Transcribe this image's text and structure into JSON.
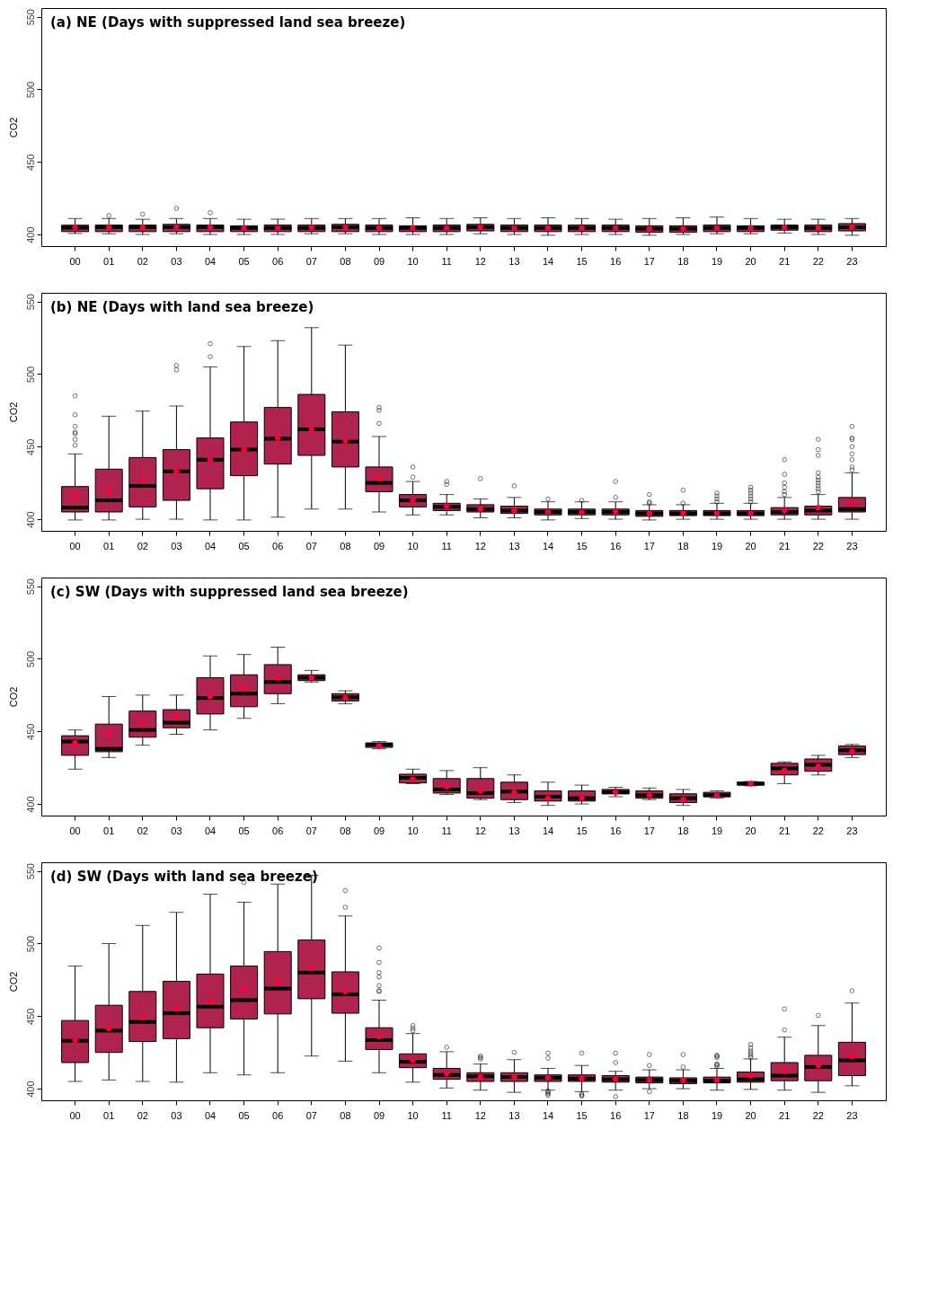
{
  "chart_data": [
    {
      "type": "box",
      "title": "(a) NE (Days with suppressed land sea breeze)",
      "ylabel": "CO2",
      "ylim": [
        392,
        556
      ],
      "yticks": [
        400,
        450,
        500,
        550
      ],
      "grid": false,
      "legend": false,
      "color": "#b0234f",
      "categories": [
        "00",
        "01",
        "02",
        "03",
        "04",
        "05",
        "06",
        "07",
        "08",
        "09",
        "10",
        "11",
        "12",
        "13",
        "14",
        "15",
        "16",
        "17",
        "18",
        "19",
        "20",
        "21",
        "22",
        "23"
      ],
      "boxes": [
        {
          "low": 400.7,
          "q1": 402,
          "median": 404.7,
          "q3": 406.4,
          "high": 411,
          "mean": 405
        },
        {
          "low": 400.5,
          "q1": 402,
          "median": 405,
          "q3": 406.5,
          "high": 411,
          "mean": 405,
          "outliers": [
            413
          ]
        },
        {
          "low": 400,
          "q1": 402,
          "median": 405,
          "q3": 406.5,
          "high": 410.5,
          "mean": 405,
          "outliers": [
            414
          ]
        },
        {
          "low": 400.5,
          "q1": 402,
          "median": 405,
          "q3": 407,
          "high": 411,
          "mean": 405,
          "outliers": [
            418
          ]
        },
        {
          "low": 400,
          "q1": 402,
          "median": 405,
          "q3": 406.5,
          "high": 411,
          "mean": 405,
          "outliers": [
            415
          ]
        },
        {
          "low": 400,
          "q1": 402,
          "median": 404.5,
          "q3": 406,
          "high": 410.5,
          "mean": 404.5
        },
        {
          "low": 400,
          "q1": 402,
          "median": 404.5,
          "q3": 406.5,
          "high": 410.5,
          "mean": 404.5
        },
        {
          "low": 400.5,
          "q1": 402,
          "median": 404.5,
          "q3": 406.5,
          "high": 411,
          "mean": 405
        },
        {
          "low": 400.5,
          "q1": 402,
          "median": 405,
          "q3": 407,
          "high": 411,
          "mean": 405
        },
        {
          "low": 400,
          "q1": 402,
          "median": 404.5,
          "q3": 406.5,
          "high": 411,
          "mean": 404.5
        },
        {
          "low": 400,
          "q1": 402,
          "median": 404.5,
          "q3": 406,
          "high": 411.5,
          "mean": 404.5
        },
        {
          "low": 400,
          "q1": 402,
          "median": 404.5,
          "q3": 406.5,
          "high": 411,
          "mean": 404.5
        },
        {
          "low": 400.5,
          "q1": 402.5,
          "median": 405,
          "q3": 407,
          "high": 411.5,
          "mean": 405
        },
        {
          "low": 400,
          "q1": 402,
          "median": 404.5,
          "q3": 406.5,
          "high": 411,
          "mean": 404.5
        },
        {
          "low": 399.5,
          "q1": 402,
          "median": 404.5,
          "q3": 406.5,
          "high": 411.5,
          "mean": 404.5
        },
        {
          "low": 400,
          "q1": 402,
          "median": 404.5,
          "q3": 406.5,
          "high": 411,
          "mean": 404.5
        },
        {
          "low": 400,
          "q1": 402,
          "median": 404.5,
          "q3": 406.5,
          "high": 410.5,
          "mean": 404.5
        },
        {
          "low": 399.5,
          "q1": 401.5,
          "median": 404,
          "q3": 406,
          "high": 411,
          "mean": 404
        },
        {
          "low": 400,
          "q1": 401.5,
          "median": 404,
          "q3": 406,
          "high": 411.5,
          "mean": 404
        },
        {
          "low": 400.5,
          "q1": 402,
          "median": 404.5,
          "q3": 406.5,
          "high": 412,
          "mean": 404.5
        },
        {
          "low": 400.5,
          "q1": 402,
          "median": 404.5,
          "q3": 406,
          "high": 411,
          "mean": 404.5
        },
        {
          "low": 401,
          "q1": 403,
          "median": 405,
          "q3": 406.5,
          "high": 410.5,
          "mean": 405
        },
        {
          "low": 400,
          "q1": 402,
          "median": 404.5,
          "q3": 406.5,
          "high": 410.5,
          "mean": 404.5
        },
        {
          "low": 399.5,
          "q1": 402.5,
          "median": 405,
          "q3": 407.5,
          "high": 411,
          "mean": 405
        }
      ]
    },
    {
      "type": "box",
      "title": "(b) NE (Days with land sea breeze)",
      "ylabel": "CO2",
      "ylim": [
        392,
        556
      ],
      "yticks": [
        400,
        450,
        500,
        550
      ],
      "grid": false,
      "legend": false,
      "color": "#b0234f",
      "categories": [
        "00",
        "01",
        "02",
        "03",
        "04",
        "05",
        "06",
        "07",
        "08",
        "09",
        "10",
        "11",
        "12",
        "13",
        "14",
        "15",
        "16",
        "17",
        "18",
        "19",
        "20",
        "21",
        "22",
        "23"
      ],
      "boxes": [
        {
          "low": 399.5,
          "q1": 405,
          "median": 408,
          "q3": 422.5,
          "high": 445,
          "mean": 416,
          "outliers": [
            451,
            455,
            459,
            460,
            464,
            472,
            485
          ]
        },
        {
          "low": 399.5,
          "q1": 405,
          "median": 413,
          "q3": 434.5,
          "high": 471,
          "mean": 420
        },
        {
          "low": 400,
          "q1": 408.5,
          "median": 423,
          "q3": 442.5,
          "high": 474.5,
          "mean": 427
        },
        {
          "low": 400,
          "q1": 413,
          "median": 433,
          "q3": 448,
          "high": 478,
          "mean": 433,
          "outliers": [
            503,
            506
          ]
        },
        {
          "low": 399.5,
          "q1": 421,
          "median": 441,
          "q3": 456,
          "high": 505,
          "mean": 441,
          "outliers": [
            512,
            521
          ]
        },
        {
          "low": 399.5,
          "q1": 430,
          "median": 448,
          "q3": 467,
          "high": 519,
          "mean": 448
        },
        {
          "low": 401.5,
          "q1": 438,
          "median": 455.5,
          "q3": 477,
          "high": 523,
          "mean": 456
        },
        {
          "low": 407,
          "q1": 444,
          "median": 462,
          "q3": 486,
          "high": 532,
          "mean": 462
        },
        {
          "low": 407,
          "q1": 436,
          "median": 453.5,
          "q3": 474,
          "high": 520,
          "mean": 454
        },
        {
          "low": 405,
          "q1": 419,
          "median": 425,
          "q3": 436,
          "high": 457,
          "mean": 428,
          "outliers": [
            466,
            475,
            477
          ]
        },
        {
          "low": 403,
          "q1": 408.5,
          "median": 413,
          "q3": 417,
          "high": 426,
          "mean": 413,
          "outliers": [
            429,
            436
          ]
        },
        {
          "low": 403,
          "q1": 406,
          "median": 408.5,
          "q3": 411,
          "high": 417,
          "mean": 409,
          "outliers": [
            424,
            426
          ]
        },
        {
          "low": 401,
          "q1": 405,
          "median": 407,
          "q3": 410,
          "high": 414,
          "mean": 407,
          "outliers": [
            428
          ]
        },
        {
          "low": 401,
          "q1": 404,
          "median": 406,
          "q3": 409,
          "high": 415,
          "mean": 406,
          "outliers": [
            423
          ]
        },
        {
          "low": 399.5,
          "q1": 403,
          "median": 405,
          "q3": 407,
          "high": 412,
          "mean": 405,
          "outliers": [
            414
          ]
        },
        {
          "low": 400.5,
          "q1": 403,
          "median": 405,
          "q3": 407,
          "high": 412,
          "mean": 404.5,
          "outliers": [
            413
          ]
        },
        {
          "low": 400,
          "q1": 403,
          "median": 405,
          "q3": 407,
          "high": 412,
          "mean": 405,
          "outliers": [
            415,
            426
          ]
        },
        {
          "low": 399.5,
          "q1": 402,
          "median": 404,
          "q3": 406,
          "high": 410,
          "mean": 404,
          "outliers": [
            411,
            412,
            417
          ]
        },
        {
          "low": 400,
          "q1": 402.5,
          "median": 404,
          "q3": 406,
          "high": 410,
          "mean": 404,
          "outliers": [
            411,
            420
          ]
        },
        {
          "low": 400,
          "q1": 402.5,
          "median": 404,
          "q3": 406,
          "high": 411,
          "mean": 404,
          "outliers": [
            412,
            414,
            416,
            418
          ]
        },
        {
          "low": 400,
          "q1": 402.5,
          "median": 404,
          "q3": 406,
          "high": 411,
          "mean": 404,
          "outliers": [
            412,
            414,
            416,
            418,
            420,
            422
          ]
        },
        {
          "low": 400,
          "q1": 403,
          "median": 405,
          "q3": 408,
          "high": 415,
          "mean": 406,
          "outliers": [
            417,
            419,
            422,
            425,
            431,
            441
          ]
        },
        {
          "low": 400,
          "q1": 403,
          "median": 406,
          "q3": 409,
          "high": 417,
          "mean": 408,
          "outliers": [
            419,
            421,
            423,
            425,
            427,
            429,
            432,
            444,
            448,
            455
          ]
        },
        {
          "low": 400,
          "q1": 405,
          "median": 407,
          "q3": 415,
          "high": 432,
          "mean": 411,
          "outliers": [
            434,
            436,
            441,
            445,
            450,
            455,
            456,
            464
          ]
        }
      ]
    },
    {
      "type": "box",
      "title": "(c) SW (Days with suppressed land sea breeze)",
      "ylabel": "CO2",
      "ylim": [
        392,
        556
      ],
      "yticks": [
        400,
        450,
        500,
        550
      ],
      "grid": false,
      "legend": false,
      "color": "#b0234f",
      "categories": [
        "00",
        "01",
        "02",
        "03",
        "04",
        "05",
        "06",
        "07",
        "08",
        "09",
        "10",
        "11",
        "12",
        "13",
        "14",
        "15",
        "16",
        "17",
        "18",
        "19",
        "20",
        "21",
        "22",
        "23"
      ],
      "boxes": [
        {
          "low": 424,
          "q1": 433.5,
          "median": 443,
          "q3": 447,
          "high": 451,
          "mean": 442
        },
        {
          "low": 432,
          "q1": 436,
          "median": 438,
          "q3": 455,
          "high": 474,
          "mean": 448
        },
        {
          "low": 440.5,
          "q1": 446,
          "median": 451,
          "q3": 464,
          "high": 475,
          "mean": 455.5
        },
        {
          "low": 448,
          "q1": 452.5,
          "median": 456,
          "q3": 465,
          "high": 475,
          "mean": 460
        },
        {
          "low": 451,
          "q1": 462,
          "median": 473,
          "q3": 487,
          "high": 502,
          "mean": 474
        },
        {
          "low": 459,
          "q1": 467,
          "median": 476,
          "q3": 489,
          "high": 503,
          "mean": 480
        },
        {
          "low": 469,
          "q1": 476,
          "median": 484,
          "q3": 496,
          "high": 508,
          "mean": 487
        },
        {
          "low": 484,
          "q1": 485,
          "median": 487,
          "q3": 489,
          "high": 492,
          "mean": 487
        },
        {
          "low": 469,
          "q1": 471,
          "median": 473.5,
          "q3": 476,
          "high": 478,
          "mean": 473
        },
        {
          "low": 438,
          "q1": 439,
          "median": 441,
          "q3": 442,
          "high": 443,
          "mean": 440
        },
        {
          "low": 414,
          "q1": 414.5,
          "median": 418,
          "q3": 420.5,
          "high": 424,
          "mean": 417
        },
        {
          "low": 406.5,
          "q1": 407.5,
          "median": 410,
          "q3": 417.5,
          "high": 423,
          "mean": 412
        },
        {
          "low": 403,
          "q1": 404,
          "median": 407.5,
          "q3": 417.5,
          "high": 425,
          "mean": 409
        },
        {
          "low": 401,
          "q1": 403,
          "median": 408.5,
          "q3": 415,
          "high": 420,
          "mean": 408
        },
        {
          "low": 399,
          "q1": 402,
          "median": 405,
          "q3": 409,
          "high": 415,
          "mean": 404
        },
        {
          "low": 400,
          "q1": 402,
          "median": 404,
          "q3": 409,
          "high": 413,
          "mean": 404
        },
        {
          "low": 405,
          "q1": 407,
          "median": 408,
          "q3": 410,
          "high": 411.5,
          "mean": 408
        },
        {
          "low": 403,
          "q1": 404,
          "median": 406,
          "q3": 409,
          "high": 411,
          "mean": 406
        },
        {
          "low": 399,
          "q1": 401,
          "median": 404,
          "q3": 407,
          "high": 410,
          "mean": 403
        },
        {
          "low": 404,
          "q1": 405,
          "median": 406,
          "q3": 408,
          "high": 409,
          "mean": 406
        },
        {
          "low": 412.5,
          "q1": 413,
          "median": 414,
          "q3": 415,
          "high": 415.5,
          "mean": 414
        },
        {
          "low": 414,
          "q1": 420,
          "median": 424.5,
          "q3": 428,
          "high": 429,
          "mean": 423
        },
        {
          "low": 420,
          "q1": 422.5,
          "median": 427,
          "q3": 431,
          "high": 433.5,
          "mean": 426
        },
        {
          "low": 432,
          "q1": 434,
          "median": 437,
          "q3": 440,
          "high": 441,
          "mean": 436
        }
      ]
    },
    {
      "type": "box",
      "title": "(d) SW (Days with land sea breeze)",
      "ylabel": "CO2",
      "ylim": [
        392,
        556
      ],
      "yticks": [
        400,
        450,
        500,
        550
      ],
      "grid": false,
      "legend": false,
      "color": "#b0234f",
      "categories": [
        "00",
        "01",
        "02",
        "03",
        "04",
        "05",
        "06",
        "07",
        "08",
        "09",
        "10",
        "11",
        "12",
        "13",
        "14",
        "15",
        "16",
        "17",
        "18",
        "19",
        "20",
        "21",
        "22",
        "23"
      ],
      "boxes": [
        {
          "low": 405,
          "q1": 418,
          "median": 433,
          "q3": 447,
          "high": 484.5,
          "mean": 433.5
        },
        {
          "low": 406,
          "q1": 425,
          "median": 440,
          "q3": 457.5,
          "high": 500,
          "mean": 441.5
        },
        {
          "low": 405,
          "q1": 432.5,
          "median": 446,
          "q3": 467,
          "high": 512.5,
          "mean": 449
        },
        {
          "low": 404.5,
          "q1": 434.5,
          "median": 452,
          "q3": 474,
          "high": 521.5,
          "mean": 455
        },
        {
          "low": 411,
          "q1": 442,
          "median": 456.5,
          "q3": 479,
          "high": 534,
          "mean": 460
        },
        {
          "low": 409.5,
          "q1": 448,
          "median": 461,
          "q3": 484.5,
          "high": 528.5,
          "mean": 468,
          "outliers": [
            542
          ]
        },
        {
          "low": 411,
          "q1": 451.5,
          "median": 469,
          "q3": 494.5,
          "high": 541,
          "mean": 474.5
        },
        {
          "low": 422.5,
          "q1": 462,
          "median": 480,
          "q3": 502.5,
          "high": 547,
          "mean": 483
        },
        {
          "low": 419,
          "q1": 452,
          "median": 465,
          "q3": 480.5,
          "high": 519,
          "mean": 467,
          "outliers": [
            525,
            536.5
          ]
        },
        {
          "low": 411,
          "q1": 427,
          "median": 433.5,
          "q3": 442,
          "high": 461,
          "mean": 436,
          "outliers": [
            467,
            467.5,
            471,
            477,
            480,
            487,
            497
          ]
        },
        {
          "low": 404.5,
          "q1": 414.5,
          "median": 418.5,
          "q3": 424,
          "high": 438,
          "mean": 419.5,
          "outliers": [
            440,
            441.5,
            443.5
          ]
        },
        {
          "low": 400.5,
          "q1": 406.5,
          "median": 409.5,
          "q3": 414,
          "high": 425.5,
          "mean": 410.5,
          "outliers": [
            428.5
          ]
        },
        {
          "low": 399,
          "q1": 405,
          "median": 408.5,
          "q3": 411,
          "high": 417,
          "mean": 408,
          "outliers": [
            420.5,
            421.5,
            422.5
          ]
        },
        {
          "low": 397.5,
          "q1": 405,
          "median": 408,
          "q3": 411,
          "high": 420,
          "mean": 408,
          "outliers": [
            425
          ]
        },
        {
          "low": 399,
          "q1": 405,
          "median": 407.5,
          "q3": 409.5,
          "high": 414,
          "mean": 407.5,
          "outliers": [
            395.5,
            396.5,
            397.5,
            398.5,
            421,
            424.5
          ]
        },
        {
          "low": 398,
          "q1": 405,
          "median": 407,
          "q3": 409.5,
          "high": 416,
          "mean": 407,
          "outliers": [
            395,
            395.5,
            396.5,
            424.5
          ]
        },
        {
          "low": 399,
          "q1": 404.5,
          "median": 406.5,
          "q3": 409,
          "high": 412,
          "mean": 406.5,
          "outliers": [
            394.5,
            418,
            424.5
          ]
        },
        {
          "low": 400,
          "q1": 404,
          "median": 406,
          "q3": 408,
          "high": 413,
          "mean": 406,
          "outliers": [
            398,
            416,
            423.5
          ]
        },
        {
          "low": 400,
          "q1": 403.5,
          "median": 405.5,
          "q3": 407.5,
          "high": 413,
          "mean": 406,
          "outliers": [
            415,
            423.5
          ]
        },
        {
          "low": 399,
          "q1": 404,
          "median": 405.5,
          "q3": 408,
          "high": 414,
          "mean": 406,
          "outliers": [
            415.5,
            416.5,
            417,
            421.5,
            422.5,
            423
          ]
        },
        {
          "low": 399.5,
          "q1": 404.5,
          "median": 406.5,
          "q3": 411.5,
          "high": 420.5,
          "mean": 409,
          "outliers": [
            421.5,
            423,
            424.5,
            426,
            428,
            430.5
          ]
        },
        {
          "low": 399,
          "q1": 405.5,
          "median": 409,
          "q3": 418,
          "high": 435.5,
          "mean": 412,
          "outliers": [
            440.5,
            455
          ]
        },
        {
          "low": 397.5,
          "q1": 405.5,
          "median": 415,
          "q3": 423,
          "high": 443.5,
          "mean": 416,
          "outliers": [
            450.5
          ]
        },
        {
          "low": 402,
          "q1": 409,
          "median": 419.5,
          "q3": 432,
          "high": 459,
          "mean": 422,
          "outliers": [
            467.5
          ]
        }
      ]
    }
  ]
}
